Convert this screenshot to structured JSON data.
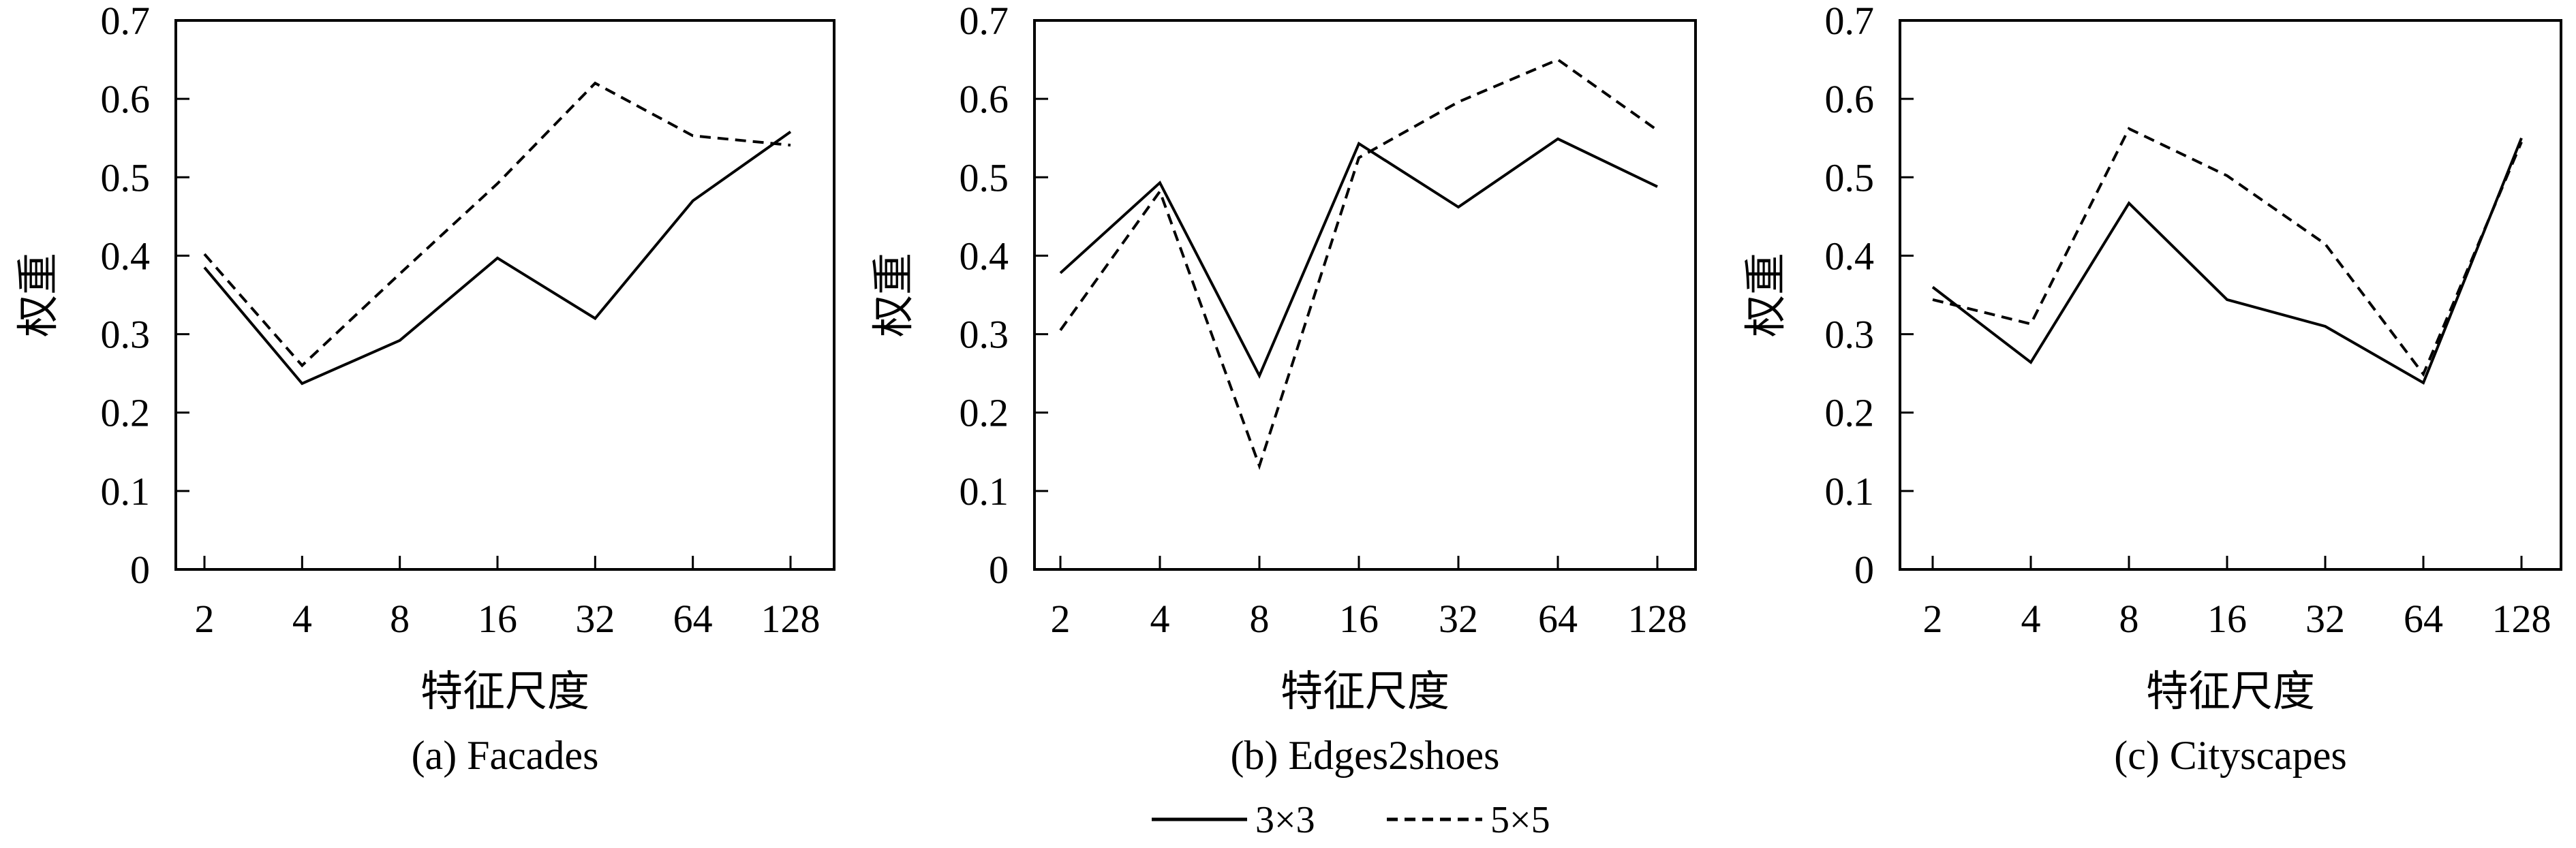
{
  "chart_data": [
    {
      "type": "line",
      "caption": "(a) Facades",
      "xlabel": "特征尺度",
      "ylabel": "权重",
      "categories": [
        "2",
        "4",
        "8",
        "16",
        "32",
        "64",
        "128"
      ],
      "ylim": [
        0,
        0.7
      ],
      "yticks": [
        "0",
        "0.1",
        "0.2",
        "0.3",
        "0.4",
        "0.5",
        "0.6",
        "0.7"
      ],
      "series": [
        {
          "name": "3×3",
          "values": [
            0.385,
            0.237,
            0.292,
            0.397,
            0.32,
            0.47,
            0.558
          ]
        },
        {
          "name": "5×5",
          "values": [
            0.402,
            0.26,
            0.377,
            0.492,
            0.62,
            0.553,
            0.541
          ]
        }
      ]
    },
    {
      "type": "line",
      "caption": "(b) Edges2shoes",
      "xlabel": "特征尺度",
      "ylabel": "权重",
      "categories": [
        "2",
        "4",
        "8",
        "16",
        "32",
        "64",
        "128"
      ],
      "ylim": [
        0,
        0.7
      ],
      "yticks": [
        "0",
        "0.1",
        "0.2",
        "0.3",
        "0.4",
        "0.5",
        "0.6",
        "0.7"
      ],
      "series": [
        {
          "name": "3×3",
          "values": [
            0.378,
            0.493,
            0.247,
            0.543,
            0.462,
            0.549,
            0.488
          ]
        },
        {
          "name": "5×5",
          "values": [
            0.305,
            0.482,
            0.132,
            0.525,
            0.596,
            0.65,
            0.56
          ]
        }
      ]
    },
    {
      "type": "line",
      "caption": "(c) Cityscapes",
      "xlabel": "特征尺度",
      "ylabel": "权重",
      "categories": [
        "2",
        "4",
        "8",
        "16",
        "32",
        "64",
        "128"
      ],
      "ylim": [
        0,
        0.7
      ],
      "yticks": [
        "0",
        "0.1",
        "0.2",
        "0.3",
        "0.4",
        "0.5",
        "0.6",
        "0.7"
      ],
      "series": [
        {
          "name": "3×3",
          "values": [
            0.36,
            0.264,
            0.467,
            0.344,
            0.31,
            0.238,
            0.55
          ]
        },
        {
          "name": "5×5",
          "values": [
            0.344,
            0.313,
            0.562,
            0.502,
            0.415,
            0.249,
            0.545
          ]
        }
      ]
    }
  ],
  "legend": {
    "placement": "bottom-center",
    "items": [
      {
        "label": "3×3",
        "style": "solid"
      },
      {
        "label": "5×5",
        "style": "dashed"
      }
    ]
  }
}
